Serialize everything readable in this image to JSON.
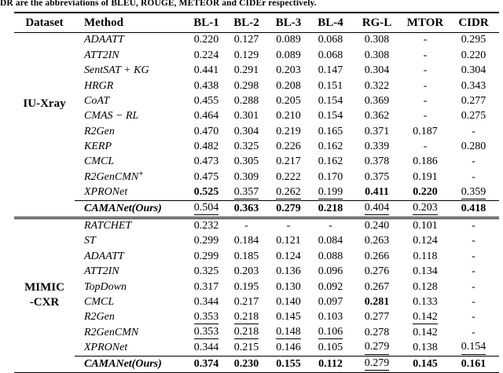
{
  "caption": "DR are the abbreviations of BLEU, ROUGE, METEOR and CIDEr respectively.",
  "colors": {
    "text": "#000000",
    "background": "#ffffff",
    "rule": "#000000"
  },
  "table": {
    "headers": [
      "Dataset",
      "Method",
      "BL-1",
      "BL-2",
      "BL-3",
      "BL-4",
      "RG-L",
      "MTOR",
      "CIDR"
    ],
    "sections": [
      {
        "dataset_lines": [
          "IU-Xray"
        ],
        "rows": [
          {
            "method": "ADAATT",
            "values": [
              "0.220",
              "0.127",
              "0.089",
              "0.068",
              "0.308",
              "-",
              "0.295"
            ]
          },
          {
            "method": "ATT2IN",
            "values": [
              "0.224",
              "0.129",
              "0.089",
              "0.068",
              "0.308",
              "-",
              "0.220"
            ]
          },
          {
            "method": "SentSAT + KG",
            "values": [
              "0.441",
              "0.291",
              "0.203",
              "0.147",
              "0.304",
              "-",
              "0.304"
            ]
          },
          {
            "method": "HRGR",
            "values": [
              "0.438",
              "0.298",
              "0.208",
              "0.151",
              "0.322",
              "-",
              "0.343"
            ]
          },
          {
            "method": "CoAT",
            "values": [
              "0.455",
              "0.288",
              "0.205",
              "0.154",
              "0.369",
              "-",
              "0.277"
            ]
          },
          {
            "method": "CMAS − RL",
            "values": [
              "0.464",
              "0.301",
              "0.210",
              "0.154",
              "0.362",
              "-",
              "0.275"
            ]
          },
          {
            "method": "R2Gen",
            "values": [
              "0.470",
              "0.304",
              "0.219",
              "0.165",
              "0.371",
              "0.187",
              "-"
            ]
          },
          {
            "method": "KERP",
            "values": [
              "0.482",
              "0.325",
              "0.226",
              "0.162",
              "0.339",
              "-",
              "0.280"
            ]
          },
          {
            "method": "CMCL",
            "values": [
              "0.473",
              "0.305",
              "0.217",
              "0.162",
              "0.378",
              "0.186",
              "-"
            ]
          },
          {
            "method": "R2GenCMN",
            "sup": "∗",
            "values": [
              "0.475",
              "0.309",
              "0.222",
              "0.170",
              "0.375",
              "0.191",
              "-"
            ]
          },
          {
            "method": "XPRONet",
            "values": [
              "0.525",
              "0.357",
              "0.262",
              "0.199",
              "0.411",
              "0.220",
              "0.359"
            ],
            "bold": [
              0,
              4,
              5
            ],
            "underline": [
              1,
              2,
              3,
              6
            ]
          },
          {
            "method": "CAMANet(Ours)",
            "method_bold": true,
            "ours": true,
            "values": [
              "0.504",
              "0.363",
              "0.279",
              "0.218",
              "0.404",
              "0.203",
              "0.418"
            ],
            "bold": [
              1,
              2,
              3,
              6
            ],
            "underline": [
              0,
              4,
              5
            ]
          }
        ]
      },
      {
        "dataset_lines": [
          "MIMIC",
          "-CXR"
        ],
        "rows": [
          {
            "method": "RATCHET",
            "values": [
              "0.232",
              "-",
              "-",
              "-",
              "0.240",
              "0.101",
              "-"
            ]
          },
          {
            "method": "ST",
            "values": [
              "0.299",
              "0.184",
              "0.121",
              "0.084",
              "0.263",
              "0.124",
              "-"
            ]
          },
          {
            "method": "ADAATT",
            "values": [
              "0.299",
              "0.185",
              "0.124",
              "0.088",
              "0.266",
              "0.118",
              "-"
            ]
          },
          {
            "method": "ATT2IN",
            "values": [
              "0.325",
              "0.203",
              "0.136",
              "0.096",
              "0.276",
              "0.134",
              "-"
            ]
          },
          {
            "method": "TopDown",
            "values": [
              "0.317",
              "0.195",
              "0.130",
              "0.092",
              "0.267",
              "0.128",
              "-"
            ]
          },
          {
            "method": "CMCL",
            "values": [
              "0.344",
              "0.217",
              "0.140",
              "0.097",
              "0.281",
              "0.133",
              "-"
            ],
            "bold": [
              4
            ]
          },
          {
            "method": "R2Gen",
            "values": [
              "0.353",
              "0.218",
              "0.145",
              "0.103",
              "0.277",
              "0.142",
              "-"
            ],
            "underline": [
              0,
              1,
              5
            ]
          },
          {
            "method": "R2GenCMN",
            "values": [
              "0.353",
              "0.218",
              "0.148",
              "0.106",
              "0.278",
              "0.142",
              "-"
            ],
            "underline": [
              0,
              1,
              2,
              3
            ]
          },
          {
            "method": "XPRONet",
            "values": [
              "0.344",
              "0.215",
              "0.146",
              "0.105",
              "0.279",
              "0.138",
              "0.154"
            ],
            "underline": [
              4,
              6
            ]
          },
          {
            "method": "CAMANet(Ours)",
            "method_bold": true,
            "ours": true,
            "values": [
              "0.374",
              "0.230",
              "0.155",
              "0.112",
              "0.279",
              "0.145",
              "0.161"
            ],
            "bold": [
              0,
              1,
              2,
              3,
              5,
              6
            ],
            "underline": [
              4
            ]
          }
        ]
      }
    ]
  }
}
